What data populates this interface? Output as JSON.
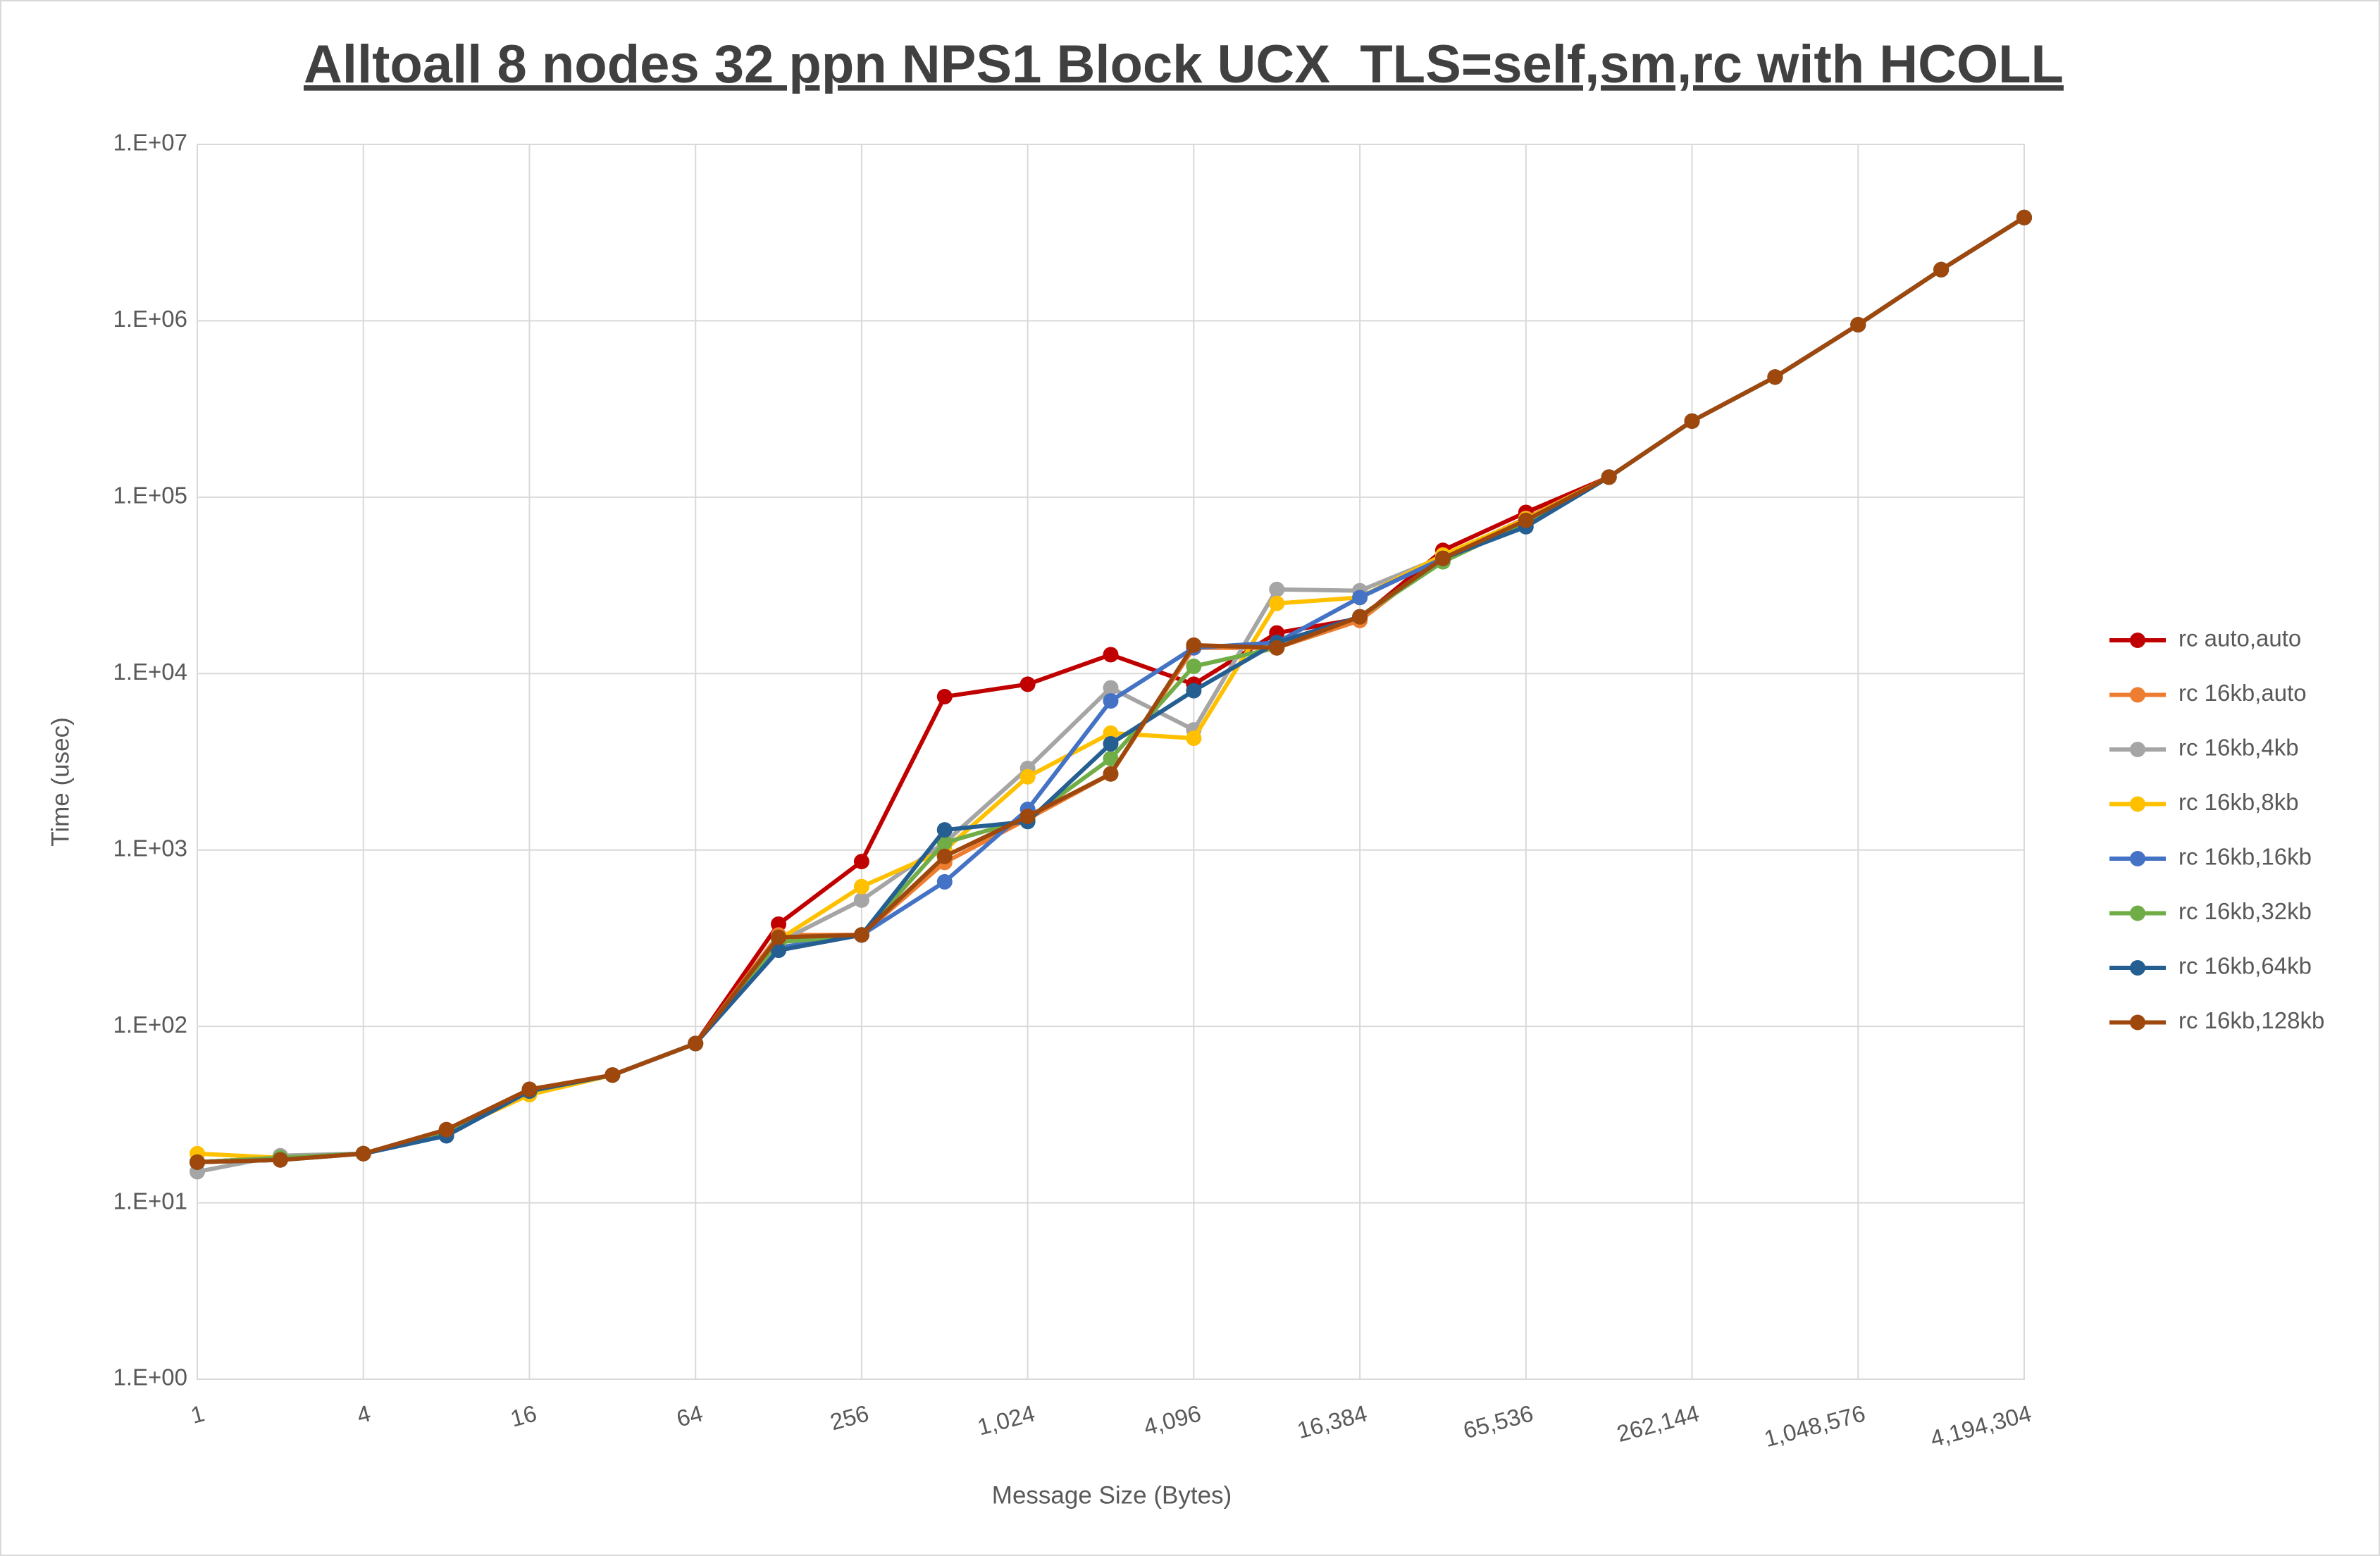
{
  "chart_data": {
    "type": "line",
    "title": "Alltoall 8 nodes 32 ppn NPS1 Block UCX_TLS=self,sm,rc with HCOLL",
    "x_label": "Message Size (Bytes)",
    "y_label": "Time (usec)",
    "x_log_base": 2,
    "y_log_base": 10,
    "grid": true,
    "legend": "right",
    "x": [
      1,
      2,
      4,
      8,
      16,
      32,
      64,
      128,
      256,
      512,
      1024,
      2048,
      4096,
      8192,
      16384,
      32768,
      65536,
      131072,
      262144,
      524288,
      1048576,
      2097152,
      4194304
    ],
    "xlim": [
      1,
      4194304
    ],
    "xticks": [
      1,
      4,
      16,
      64,
      256,
      {
        "value": 1024,
        "label": "1,024"
      },
      {
        "value": 4096,
        "label": "4,096"
      },
      {
        "value": 16384,
        "label": "16,384"
      },
      {
        "value": 65536,
        "label": "65,536"
      },
      {
        "value": 262144,
        "label": "262,144"
      },
      {
        "value": 1048576,
        "label": "1,048,576"
      },
      {
        "value": 4194304,
        "label": "4,194,304"
      }
    ],
    "ylim": [
      1,
      10000000
    ],
    "yticks": [
      {
        "value": 1,
        "label": "1.E+00"
      },
      {
        "value": 10,
        "label": "1.E+01"
      },
      {
        "value": 100,
        "label": "1.E+02"
      },
      {
        "value": 1000,
        "label": "1.E+03"
      },
      {
        "value": 10000,
        "label": "1.E+04"
      },
      {
        "value": 100000,
        "label": "1.E+05"
      },
      {
        "value": 1000000,
        "label": "1.E+06"
      },
      {
        "value": 10000000,
        "label": "1.E+07"
      }
    ],
    "series": [
      {
        "name": "rc auto,auto",
        "color": "#c00000",
        "values": [
          17,
          18,
          19,
          25,
          43,
          53,
          80,
          380,
          860,
          7400,
          8700,
          12800,
          8700,
          17000,
          20500,
          50000,
          82000,
          130000,
          270000,
          480000,
          950000,
          1950000,
          3850000
        ]
      },
      {
        "name": "rc 16kb,auto",
        "color": "#ed7d31",
        "values": [
          17,
          18,
          19,
          25,
          43,
          53,
          80,
          330,
          330,
          850,
          1500,
          2700,
          14000,
          14000,
          20000,
          46000,
          76000,
          130000,
          270000,
          480000,
          950000,
          1950000,
          3850000
        ]
      },
      {
        "name": "rc 16kb,4kb",
        "color": "#a5a5a5",
        "values": [
          15,
          18.5,
          19,
          25,
          43,
          53,
          80,
          300,
          520,
          1100,
          2900,
          8300,
          4800,
          30000,
          29500,
          46000,
          75000,
          130000,
          270000,
          480000,
          950000,
          1950000,
          3850000
        ]
      },
      {
        "name": "rc 16kb,8kb",
        "color": "#ffc000",
        "values": [
          19,
          18,
          19,
          25,
          41,
          53,
          80,
          310,
          620,
          1000,
          2600,
          4600,
          4300,
          25000,
          27000,
          47000,
          75000,
          130000,
          270000,
          480000,
          950000,
          1950000,
          3850000
        ]
      },
      {
        "name": "rc 16kb,16kb",
        "color": "#4472c4",
        "values": [
          17,
          18,
          19,
          24,
          43,
          53,
          80,
          280,
          330,
          660,
          1700,
          7000,
          14000,
          15000,
          27000,
          45000,
          72000,
          130000,
          270000,
          480000,
          950000,
          1950000,
          3850000
        ]
      },
      {
        "name": "rc 16kb,32kb",
        "color": "#70ad47",
        "values": [
          17,
          18,
          19,
          25,
          43,
          53,
          80,
          300,
          330,
          1100,
          1500,
          3300,
          11000,
          14000,
          21000,
          43000,
          72000,
          130000,
          270000,
          480000,
          950000,
          1950000,
          3850000
        ]
      },
      {
        "name": "rc 16kb,64kb",
        "color": "#255e91",
        "values": [
          17,
          17.5,
          19,
          24,
          43,
          53,
          80,
          270,
          330,
          1300,
          1450,
          4000,
          8000,
          15000,
          21000,
          45000,
          68000,
          130000,
          270000,
          480000,
          950000,
          1950000,
          3850000
        ]
      },
      {
        "name": "rc 16kb,128kb",
        "color": "#9e480e",
        "values": [
          17,
          17.5,
          19,
          26,
          44,
          53,
          80,
          320,
          330,
          920,
          1550,
          2700,
          14500,
          14000,
          21000,
          45000,
          74000,
          130000,
          270000,
          480000,
          950000,
          1950000,
          3850000
        ]
      }
    ]
  }
}
